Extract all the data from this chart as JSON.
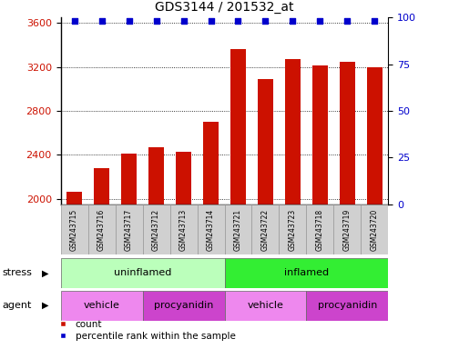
{
  "title": "GDS3144 / 201532_at",
  "samples": [
    "GSM243715",
    "GSM243716",
    "GSM243717",
    "GSM243712",
    "GSM243713",
    "GSM243714",
    "GSM243721",
    "GSM243722",
    "GSM243723",
    "GSM243718",
    "GSM243719",
    "GSM243720"
  ],
  "counts": [
    2060,
    2280,
    2410,
    2470,
    2430,
    2700,
    3360,
    3090,
    3270,
    3210,
    3250,
    3200
  ],
  "percentile_ranks": [
    98,
    98,
    98,
    98,
    98,
    98,
    98,
    98,
    98,
    98,
    98,
    98
  ],
  "ylim_left": [
    1950,
    3650
  ],
  "ylim_right": [
    0,
    100
  ],
  "yticks_left": [
    2000,
    2400,
    2800,
    3200,
    3600
  ],
  "yticks_right": [
    0,
    25,
    50,
    75,
    100
  ],
  "bar_color": "#cc1100",
  "dot_color": "#0000cc",
  "bar_width": 0.55,
  "stress_groups": [
    {
      "label": "uninflamed",
      "start": 0,
      "end": 6,
      "color": "#bbffbb"
    },
    {
      "label": "inflamed",
      "start": 6,
      "end": 12,
      "color": "#33ee33"
    }
  ],
  "agent_groups": [
    {
      "label": "vehicle",
      "start": 0,
      "end": 3,
      "color": "#ee88ee"
    },
    {
      "label": "procyanidin",
      "start": 3,
      "end": 6,
      "color": "#cc44cc"
    },
    {
      "label": "vehicle",
      "start": 6,
      "end": 9,
      "color": "#ee88ee"
    },
    {
      "label": "procyanidin",
      "start": 9,
      "end": 12,
      "color": "#cc44cc"
    }
  ],
  "stress_label": "stress",
  "agent_label": "agent",
  "legend_count_label": "count",
  "legend_pct_label": "percentile rank within the sample",
  "tick_label_color_left": "#cc1100",
  "tick_label_color_right": "#0000cc",
  "bg_color": "#ffffff",
  "sample_bg_color": "#d0d0d0",
  "fig_width": 4.93,
  "fig_height": 3.84,
  "dpi": 100
}
